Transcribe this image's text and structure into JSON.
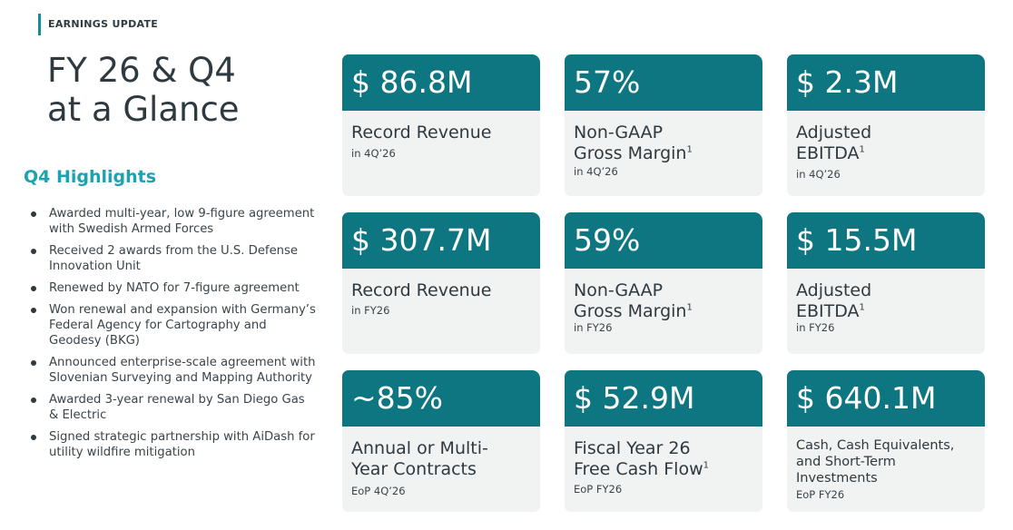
{
  "header": {
    "label": "EARNINGS UPDATE"
  },
  "title": {
    "line1": "FY 26 & Q4",
    "line2": "at a Glance"
  },
  "highlights": {
    "title": "Q4 Highlights",
    "items": [
      "Awarded multi-year, low 9-figure agreement with Swedish Armed Forces",
      "Received 2 awards from the U.S. Defense Innovation Unit",
      "Renewed by NATO for 7-figure agreement",
      "Won renewal and expansion with Germany’s Federal Agency for Cartography and Geodesy (BKG)",
      "Announced enterprise-scale agreement with Slovenian Surveying and Mapping Authority",
      "Awarded 3-year renewal by San Diego Gas & Electric",
      "Signed strategic partnership with AiDash for utility wildfire mitigation"
    ]
  },
  "cards": [
    {
      "value": "$ 86.8M",
      "desc1": "Record Revenue",
      "desc2": "",
      "sup": "",
      "sub": "in  4Q’26"
    },
    {
      "value": "57%",
      "desc1": "Non-GAAP",
      "desc2": "Gross Margin",
      "sup": "1",
      "sub": "in  4Q’26"
    },
    {
      "value": "$ 2.3M",
      "desc1": "Adjusted",
      "desc2": "EBITDA",
      "sup": "1",
      "sub": "in  4Q’26"
    },
    {
      "value": "$ 307.7M",
      "desc1": "Record Revenue",
      "desc2": "",
      "sup": "",
      "sub": "in  FY26"
    },
    {
      "value": "59%",
      "desc1": "Non-GAAP",
      "desc2": "Gross Margin",
      "sup": "1",
      "sub": "in  FY26"
    },
    {
      "value": "$ 15.5M",
      "desc1": "Adjusted",
      "desc2": "EBITDA",
      "sup": "1",
      "sub": "in  FY26"
    },
    {
      "value": "~85%",
      "desc1": "Annual or Multi-",
      "desc2": "Year Contracts",
      "sup": "",
      "sub": "EoP 4Q’26"
    },
    {
      "value": "$ 52.9M",
      "desc1": "Fiscal Year 26",
      "desc2": "Free Cash Flow",
      "sup": "1",
      "sub": "EoP FY26"
    },
    {
      "value": "$ 640.1M",
      "desc1": "Cash, Cash Equivalents, and Short-Term Investments",
      "desc2": "",
      "sup": "",
      "sub": "EoP FY26"
    }
  ],
  "colors": {
    "teal": "#0e7680",
    "accent": "#1aa3b3",
    "card_bg": "#f1f2f2",
    "text": "#2e3a40"
  }
}
